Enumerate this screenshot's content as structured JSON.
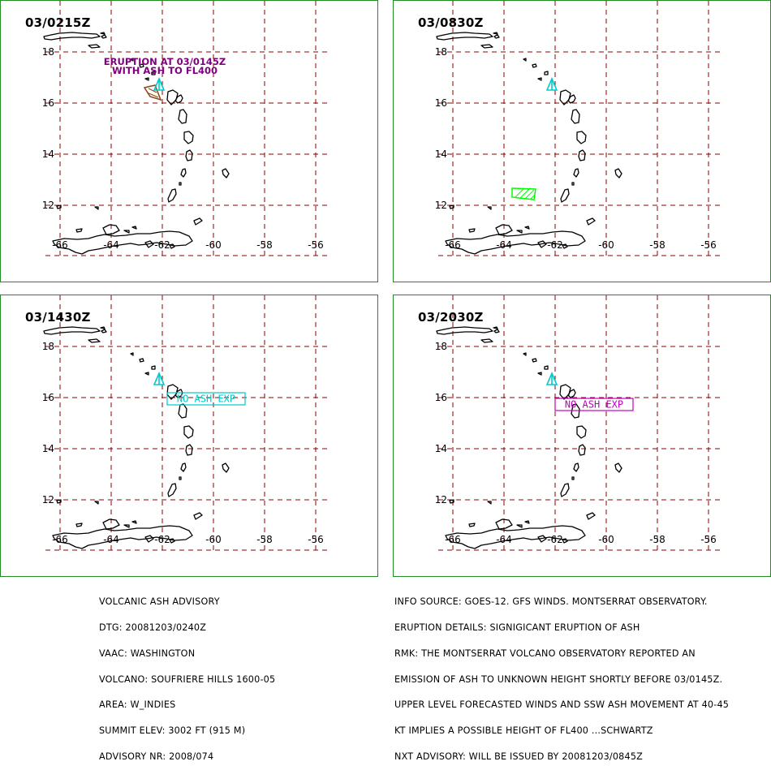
{
  "panels": [
    {
      "id": "p1",
      "time": "03/0215Z",
      "ash": "poly",
      "annotation": [
        "ERUPTION AT 03/0145Z",
        "WITH ASH TO FL400"
      ],
      "annotation_color": "#800080",
      "ash_color": "#8b4513"
    },
    {
      "id": "p2",
      "time": "03/0830Z",
      "ash": "hatch",
      "ash_color": "#00ff00"
    },
    {
      "id": "p3",
      "time": "03/1430Z",
      "ash": "none",
      "label": "NO ASH EXP",
      "label_color": "#00c8c8"
    },
    {
      "id": "p4",
      "time": "03/2030Z",
      "ash": "none",
      "label": "NO ASH EXP",
      "label_color": "#c000c0"
    }
  ],
  "map": {
    "lat_labels": [
      "18",
      "16",
      "14",
      "12"
    ],
    "lon_labels": [
      "-66",
      "-64",
      "-62",
      "-60",
      "-58",
      "-56"
    ],
    "grid_color": "#8b0000",
    "volcano_color": "#00cccc",
    "volcano_icon": "volcano-triangle-icon"
  },
  "advisory_left": [
    "VOLCANIC ASH ADVISORY",
    "DTG: 20081203/0240Z",
    "VAAC: WASHINGTON",
    "VOLCANO: SOUFRIERE HILLS 1600-05",
    "AREA: W_INDIES",
    "SUMMIT ELEV: 3002 FT (915 M)",
    "ADVISORY NR: 2008/074"
  ],
  "advisory_right": [
    "INFO SOURCE: GOES-12. GFS WINDS. MONTSERRAT OBSERVATORY.",
    "ERUPTION DETAILS: SIGNIGICANT ERUPTION OF ASH",
    "RMK: THE MONTSERRAT VOLCANO OBSERVATORY REPORTED AN",
    "EMISSION OF ASH TO UNKNOWN HEIGHT SHORTLY BEFORE 03/0145Z.",
    "UPPER LEVEL FORECASTED WINDS AND SSW ASH MOVEMENT AT 40-45",
    "KT IMPLIES A POSSIBLE HEIGHT OF FL400 ...SCHWARTZ",
    "NXT ADVISORY: WILL BE ISSUED BY 20081203/0845Z"
  ]
}
